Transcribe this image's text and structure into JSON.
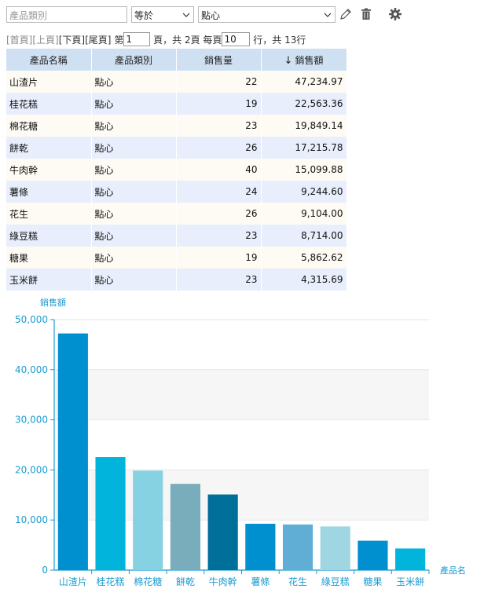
{
  "filter": {
    "field_placeholder": "產品類別",
    "operator": "等於",
    "value": "點心"
  },
  "icons": {
    "edit": "pencil-icon",
    "delete": "trash-icon",
    "settings": "gear-icon",
    "dropdown": "chevron-down-icon"
  },
  "pager": {
    "first": "[首頁]",
    "prev": "[上頁]",
    "next": "[下頁]",
    "last": "[尾頁]",
    "page_label_pre": "第",
    "page": "1",
    "page_label_post": "頁，共 2頁 每頁",
    "per_page": "10",
    "rows_label": "行，共 13行"
  },
  "table": {
    "columns": [
      "產品名稱",
      "產品類別",
      "銷售量",
      "銷售額"
    ],
    "sort_indicator": "↓",
    "rows": [
      [
        "山渣片",
        "點心",
        "22",
        "47,234.97"
      ],
      [
        "桂花糕",
        "點心",
        "19",
        "22,563.36"
      ],
      [
        "棉花糖",
        "點心",
        "23",
        "19,849.14"
      ],
      [
        "餅乾",
        "點心",
        "26",
        "17,215.78"
      ],
      [
        "牛肉幹",
        "點心",
        "40",
        "15,099.88"
      ],
      [
        "薯條",
        "點心",
        "24",
        "9,244.60"
      ],
      [
        "花生",
        "點心",
        "26",
        "9,104.00"
      ],
      [
        "綠豆糕",
        "點心",
        "23",
        "8,714.00"
      ],
      [
        "糖果",
        "點心",
        "19",
        "5,862.62"
      ],
      [
        "玉米餅",
        "點心",
        "23",
        "4,315.69"
      ]
    ]
  },
  "chart_data": {
    "type": "bar",
    "title": "",
    "xlabel": "產品名",
    "ylabel": "銷售額",
    "categories": [
      "山渣片",
      "桂花糕",
      "棉花糖",
      "餅乾",
      "牛肉幹",
      "薯條",
      "花生",
      "綠豆糕",
      "糖果",
      "玉米餅"
    ],
    "values": [
      47234.97,
      22563.36,
      19849.14,
      17215.78,
      15099.88,
      9244.6,
      9104.0,
      8714.0,
      5862.62,
      4315.69
    ],
    "ylim": [
      0,
      50000
    ],
    "yticks": [
      0,
      10000,
      20000,
      30000,
      40000,
      50000
    ],
    "ytick_labels": [
      "0",
      "10,000",
      "20,000",
      "30,000",
      "40,000",
      "50,000"
    ],
    "colors": [
      "#0090d0",
      "#00b4dc",
      "#86d2e2",
      "#7aadbb",
      "#006f99",
      "#0090d0",
      "#60aed6",
      "#a0d6e2",
      "#0090d0",
      "#00b4dc"
    ],
    "axis_color": "#1a9bd0",
    "grid": true,
    "legend": "none"
  }
}
